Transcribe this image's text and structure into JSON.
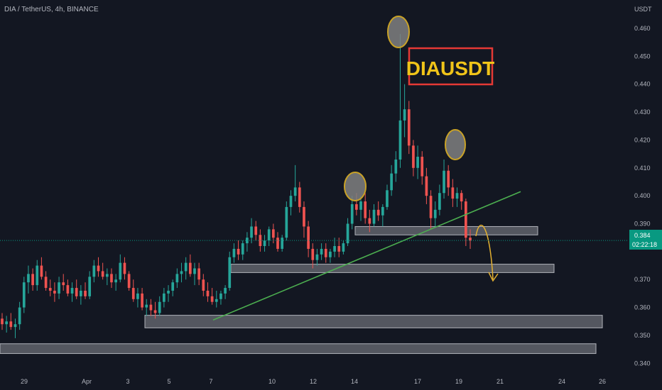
{
  "header": {
    "symbol_info": "DIA / TetherUS, 4h, BINANCE"
  },
  "price_axis": {
    "currency": "USDT"
  },
  "annotation": {
    "label": "DIAUSDT"
  },
  "current_price": {
    "value": "0.384",
    "countdown": "02:22:18"
  },
  "colors": {
    "background": "#131722",
    "up_candle": "#26a69a",
    "down_candle": "#ef5350",
    "trendline": "#4caf50",
    "zone_fill": "#6b6e76",
    "zone_border": "#b0b3ba",
    "circle_fill": "#808080",
    "circle_border": "#c9a227",
    "arrow": "#e3b030",
    "label_text": "#f0c419",
    "label_border": "#e53935",
    "price_tag": "#089981"
  },
  "chart_data": {
    "type": "candlestick",
    "title": "DIA / TetherUS, 4h, BINANCE",
    "ylabel": "USDT",
    "ylim": [
      0.337,
      0.465
    ],
    "y_ticks": [
      "0.460",
      "0.450",
      "0.440",
      "0.430",
      "0.420",
      "0.410",
      "0.400",
      "0.390",
      "0.370",
      "0.360",
      "0.350",
      "0.340"
    ],
    "x_ticks": [
      "29",
      "Apr",
      "3",
      "5",
      "7",
      "10",
      "12",
      "14",
      "17",
      "19",
      "21",
      "24",
      "26"
    ],
    "series": [
      {
        "name": "DIAUSDT",
        "ohlc_description": "[open, high, low, close] per 4h bar, Mar 28 - Apr 19",
        "ohlc": [
          [
            0.356,
            0.358,
            0.352,
            0.354
          ],
          [
            0.354,
            0.357,
            0.351,
            0.355
          ],
          [
            0.355,
            0.358,
            0.352,
            0.353
          ],
          [
            0.353,
            0.356,
            0.349,
            0.354
          ],
          [
            0.354,
            0.362,
            0.352,
            0.36
          ],
          [
            0.36,
            0.371,
            0.358,
            0.369
          ],
          [
            0.369,
            0.375,
            0.365,
            0.372
          ],
          [
            0.372,
            0.374,
            0.366,
            0.368
          ],
          [
            0.368,
            0.377,
            0.366,
            0.375
          ],
          [
            0.375,
            0.378,
            0.37,
            0.371
          ],
          [
            0.371,
            0.373,
            0.366,
            0.367
          ],
          [
            0.367,
            0.37,
            0.364,
            0.366
          ],
          [
            0.366,
            0.369,
            0.362,
            0.365
          ],
          [
            0.365,
            0.371,
            0.363,
            0.369
          ],
          [
            0.369,
            0.372,
            0.366,
            0.368
          ],
          [
            0.368,
            0.37,
            0.364,
            0.365
          ],
          [
            0.365,
            0.369,
            0.362,
            0.367
          ],
          [
            0.367,
            0.37,
            0.363,
            0.364
          ],
          [
            0.364,
            0.368,
            0.361,
            0.366
          ],
          [
            0.366,
            0.369,
            0.363,
            0.364
          ],
          [
            0.364,
            0.373,
            0.363,
            0.371
          ],
          [
            0.371,
            0.377,
            0.369,
            0.375
          ],
          [
            0.375,
            0.378,
            0.371,
            0.373
          ],
          [
            0.373,
            0.376,
            0.37,
            0.371
          ],
          [
            0.371,
            0.374,
            0.368,
            0.372
          ],
          [
            0.372,
            0.374,
            0.367,
            0.369
          ],
          [
            0.369,
            0.372,
            0.366,
            0.37
          ],
          [
            0.37,
            0.379,
            0.369,
            0.376
          ],
          [
            0.376,
            0.378,
            0.37,
            0.372
          ],
          [
            0.372,
            0.373,
            0.366,
            0.367
          ],
          [
            0.367,
            0.37,
            0.362,
            0.363
          ],
          [
            0.363,
            0.367,
            0.36,
            0.365
          ],
          [
            0.365,
            0.367,
            0.359,
            0.36
          ],
          [
            0.36,
            0.363,
            0.357,
            0.361
          ],
          [
            0.361,
            0.363,
            0.357,
            0.359
          ],
          [
            0.359,
            0.362,
            0.356,
            0.358
          ],
          [
            0.358,
            0.364,
            0.357,
            0.362
          ],
          [
            0.362,
            0.367,
            0.36,
            0.365
          ],
          [
            0.365,
            0.368,
            0.362,
            0.366
          ],
          [
            0.366,
            0.37,
            0.364,
            0.369
          ],
          [
            0.369,
            0.374,
            0.367,
            0.372
          ],
          [
            0.372,
            0.376,
            0.369,
            0.373
          ],
          [
            0.373,
            0.378,
            0.37,
            0.376
          ],
          [
            0.376,
            0.379,
            0.371,
            0.372
          ],
          [
            0.372,
            0.376,
            0.368,
            0.374
          ],
          [
            0.374,
            0.376,
            0.368,
            0.37
          ],
          [
            0.37,
            0.372,
            0.364,
            0.366
          ],
          [
            0.366,
            0.369,
            0.362,
            0.364
          ],
          [
            0.364,
            0.367,
            0.361,
            0.362
          ],
          [
            0.362,
            0.366,
            0.36,
            0.363
          ],
          [
            0.363,
            0.366,
            0.361,
            0.365
          ],
          [
            0.365,
            0.368,
            0.363,
            0.367
          ],
          [
            0.367,
            0.38,
            0.366,
            0.378
          ],
          [
            0.378,
            0.383,
            0.376,
            0.381
          ],
          [
            0.381,
            0.384,
            0.377,
            0.379
          ],
          [
            0.379,
            0.384,
            0.377,
            0.383
          ],
          [
            0.383,
            0.387,
            0.38,
            0.385
          ],
          [
            0.385,
            0.392,
            0.383,
            0.389
          ],
          [
            0.389,
            0.391,
            0.384,
            0.386
          ],
          [
            0.386,
            0.388,
            0.38,
            0.382
          ],
          [
            0.382,
            0.386,
            0.38,
            0.384
          ],
          [
            0.384,
            0.389,
            0.382,
            0.388
          ],
          [
            0.388,
            0.39,
            0.383,
            0.385
          ],
          [
            0.385,
            0.387,
            0.38,
            0.381
          ],
          [
            0.381,
            0.386,
            0.38,
            0.385
          ],
          [
            0.385,
            0.398,
            0.384,
            0.396
          ],
          [
            0.396,
            0.402,
            0.393,
            0.4
          ],
          [
            0.4,
            0.411,
            0.398,
            0.403
          ],
          [
            0.403,
            0.405,
            0.394,
            0.396
          ],
          [
            0.396,
            0.398,
            0.385,
            0.389
          ],
          [
            0.389,
            0.391,
            0.378,
            0.381
          ],
          [
            0.381,
            0.383,
            0.374,
            0.377
          ],
          [
            0.377,
            0.381,
            0.375,
            0.379
          ],
          [
            0.379,
            0.383,
            0.377,
            0.381
          ],
          [
            0.381,
            0.383,
            0.376,
            0.378
          ],
          [
            0.378,
            0.381,
            0.376,
            0.38
          ],
          [
            0.38,
            0.385,
            0.378,
            0.382
          ],
          [
            0.382,
            0.385,
            0.378,
            0.38
          ],
          [
            0.38,
            0.384,
            0.379,
            0.383
          ],
          [
            0.383,
            0.392,
            0.382,
            0.39
          ],
          [
            0.39,
            0.4,
            0.388,
            0.397
          ],
          [
            0.397,
            0.401,
            0.393,
            0.395
          ],
          [
            0.395,
            0.4,
            0.391,
            0.398
          ],
          [
            0.398,
            0.401,
            0.39,
            0.392
          ],
          [
            0.392,
            0.395,
            0.387,
            0.39
          ],
          [
            0.39,
            0.397,
            0.389,
            0.395
          ],
          [
            0.395,
            0.398,
            0.391,
            0.393
          ],
          [
            0.393,
            0.397,
            0.389,
            0.396
          ],
          [
            0.396,
            0.404,
            0.395,
            0.402
          ],
          [
            0.402,
            0.411,
            0.4,
            0.408
          ],
          [
            0.408,
            0.416,
            0.405,
            0.413
          ],
          [
            0.413,
            0.458,
            0.41,
            0.427
          ],
          [
            0.427,
            0.44,
            0.421,
            0.431
          ],
          [
            0.431,
            0.434,
            0.415,
            0.418
          ],
          [
            0.418,
            0.42,
            0.407,
            0.41
          ],
          [
            0.41,
            0.418,
            0.406,
            0.414
          ],
          [
            0.414,
            0.416,
            0.404,
            0.407
          ],
          [
            0.407,
            0.41,
            0.397,
            0.4
          ],
          [
            0.4,
            0.402,
            0.388,
            0.392
          ],
          [
            0.392,
            0.398,
            0.389,
            0.395
          ],
          [
            0.395,
            0.404,
            0.393,
            0.401
          ],
          [
            0.401,
            0.413,
            0.399,
            0.409
          ],
          [
            0.409,
            0.411,
            0.4,
            0.403
          ],
          [
            0.403,
            0.406,
            0.396,
            0.399
          ],
          [
            0.399,
            0.403,
            0.396,
            0.401
          ],
          [
            0.401,
            0.402,
            0.395,
            0.398
          ],
          [
            0.398,
            0.399,
            0.382,
            0.385
          ],
          [
            0.385,
            0.388,
            0.381,
            0.384
          ]
        ]
      }
    ],
    "horizontal_zones": [
      {
        "from": 0.386,
        "to": 0.389
      },
      {
        "from": 0.3725,
        "to": 0.3755
      },
      {
        "from": 0.3527,
        "to": 0.3572
      },
      {
        "from": 0.3435,
        "to": 0.347
      }
    ],
    "trendline": {
      "from": [
        0.3555
      ],
      "to": [
        0.4015
      ]
    },
    "highlighted_peaks": 3,
    "projection": "downward arrow from 0.388 toward 0.373"
  }
}
